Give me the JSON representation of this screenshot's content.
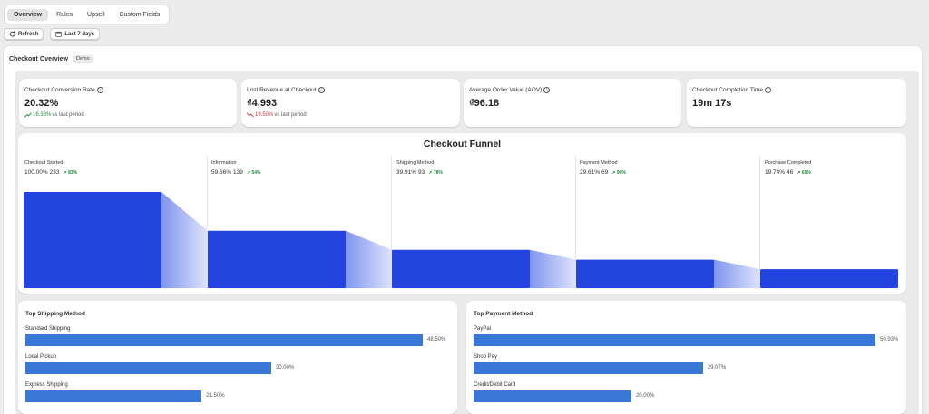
{
  "tabs": [
    {
      "label": "Overview",
      "active": true
    },
    {
      "label": "Rules"
    },
    {
      "label": "Upsell"
    },
    {
      "label": "Custom Fields"
    }
  ],
  "toolbar": {
    "refresh": "Refresh",
    "range": "Last 7 days"
  },
  "overview": {
    "title": "Checkout Overview",
    "badge": "Demo"
  },
  "kpis": [
    {
      "label": "Checkout Conversion Rate",
      "value": "20.32%",
      "delta": "16.33%",
      "delta_dir": "up",
      "delta_suffix": "vs last period"
    },
    {
      "label": "Lost Revenue at Checkout",
      "value": "₫4,993",
      "delta": "19.50%",
      "delta_dir": "down",
      "delta_suffix": "vs last period"
    },
    {
      "label": "Average Order Value (AOV)",
      "value": "₫96.18"
    },
    {
      "label": "Checkout Completion Time",
      "value": "19m 17s"
    }
  ],
  "funnel": {
    "title": "Checkout Funnel",
    "stages": [
      {
        "name": "Checkout Started",
        "pct": "100.00%",
        "count": "233",
        "conv": "83%"
      },
      {
        "name": "Information",
        "pct": "59.66%",
        "count": "139",
        "conv": "54%"
      },
      {
        "name": "Shipping Method",
        "pct": "39.91%",
        "count": "93",
        "conv": "78%"
      },
      {
        "name": "Payment Method",
        "pct": "29.61%",
        "count": "69",
        "conv": "90%"
      },
      {
        "name": "Purchase Completed",
        "pct": "19.74%",
        "count": "46",
        "conv": "65%"
      }
    ],
    "values": [
      233,
      139,
      93,
      69,
      46
    ],
    "colors": {
      "bar": "#2444e0",
      "connector_start": "#7f95ef",
      "connector_end": "#dfe4fb"
    }
  },
  "shipping": {
    "title": "Top Shipping Method",
    "items": [
      {
        "label": "Standard Shipping",
        "value": "48.50%",
        "pct": 48.5
      },
      {
        "label": "Local Pickup",
        "value": "30.00%",
        "pct": 30.0
      },
      {
        "label": "Express Shipping",
        "value": "21.50%",
        "pct": 21.5
      }
    ]
  },
  "payment": {
    "title": "Top Payment Method",
    "items": [
      {
        "label": "PayPal",
        "value": "50.93%",
        "pct": 50.93
      },
      {
        "label": "Shop Pay",
        "value": "29.07%",
        "pct": 29.07
      },
      {
        "label": "Credit/Debit Card",
        "value": "20.00%",
        "pct": 20.0
      }
    ]
  },
  "colors": {
    "bar": "#3a78d6",
    "up": "#1a8a3a",
    "down": "#d1303b"
  }
}
